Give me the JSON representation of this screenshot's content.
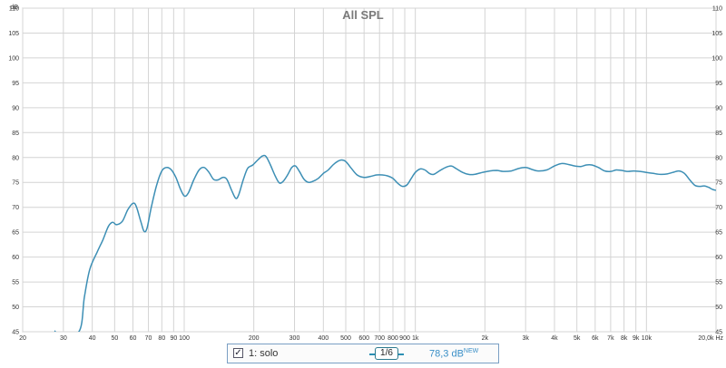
{
  "chart_data": {
    "type": "line",
    "title": "All SPL",
    "ylabel": "dB",
    "xscale": "log",
    "xlim": [
      20,
      20000
    ],
    "ylim": [
      45,
      110
    ],
    "grid": true,
    "y_ticks": [
      45,
      50,
      55,
      60,
      65,
      70,
      75,
      80,
      85,
      90,
      95,
      100,
      105,
      110
    ],
    "x_ticks": [
      {
        "v": 20,
        "label": "20"
      },
      {
        "v": 30,
        "label": "30"
      },
      {
        "v": 40,
        "label": "40"
      },
      {
        "v": 50,
        "label": "50"
      },
      {
        "v": 60,
        "label": "60"
      },
      {
        "v": 70,
        "label": "70"
      },
      {
        "v": 80,
        "label": "80"
      },
      {
        "v": 90,
        "label": "90"
      },
      {
        "v": 100,
        "label": "100"
      },
      {
        "v": 200,
        "label": "200"
      },
      {
        "v": 300,
        "label": "300"
      },
      {
        "v": 400,
        "label": "400"
      },
      {
        "v": 500,
        "label": "500"
      },
      {
        "v": 600,
        "label": "600"
      },
      {
        "v": 700,
        "label": "700"
      },
      {
        "v": 800,
        "label": "800"
      },
      {
        "v": 900,
        "label": "900"
      },
      {
        "v": 1000,
        "label": "1k"
      },
      {
        "v": 2000,
        "label": "2k"
      },
      {
        "v": 3000,
        "label": "3k"
      },
      {
        "v": 4000,
        "label": "4k"
      },
      {
        "v": 5000,
        "label": "5k"
      },
      {
        "v": 6000,
        "label": "6k"
      },
      {
        "v": 7000,
        "label": "7k"
      },
      {
        "v": 8000,
        "label": "8k"
      },
      {
        "v": 9000,
        "label": "9k"
      },
      {
        "v": 10000,
        "label": "10k"
      },
      {
        "v": 20000,
        "label": "20,0k Hz"
      }
    ],
    "series": [
      {
        "name": "1: solo",
        "color": "#3d8fb5",
        "points": [
          [
            27.5,
            45.2
          ],
          [
            28.5,
            44.8
          ],
          [
            35,
            45
          ],
          [
            37,
            52
          ],
          [
            39,
            57.5
          ],
          [
            42,
            61
          ],
          [
            44.5,
            63.5
          ],
          [
            47,
            66.2
          ],
          [
            49,
            67
          ],
          [
            51,
            66.5
          ],
          [
            54,
            67.2
          ],
          [
            57,
            69.5
          ],
          [
            60,
            70.8
          ],
          [
            62,
            70.2
          ],
          [
            65,
            67
          ],
          [
            67,
            65.2
          ],
          [
            69,
            65.8
          ],
          [
            72,
            70
          ],
          [
            76,
            74.5
          ],
          [
            80,
            77.3
          ],
          [
            84,
            78
          ],
          [
            88,
            77.5
          ],
          [
            92,
            76
          ],
          [
            96,
            73.8
          ],
          [
            100,
            72.3
          ],
          [
            104,
            72.8
          ],
          [
            110,
            75.5
          ],
          [
            116,
            77.5
          ],
          [
            122,
            78
          ],
          [
            128,
            77
          ],
          [
            134,
            75.6
          ],
          [
            140,
            75.5
          ],
          [
            147,
            76
          ],
          [
            153,
            75.6
          ],
          [
            160,
            73.5
          ],
          [
            167,
            71.8
          ],
          [
            172,
            72.5
          ],
          [
            180,
            75.5
          ],
          [
            188,
            77.8
          ],
          [
            198,
            78.5
          ],
          [
            208,
            79.5
          ],
          [
            218,
            80.3
          ],
          [
            226,
            80.2
          ],
          [
            236,
            78.5
          ],
          [
            248,
            76.2
          ],
          [
            258,
            74.9
          ],
          [
            268,
            75.2
          ],
          [
            280,
            76.5
          ],
          [
            292,
            78
          ],
          [
            303,
            78.3
          ],
          [
            315,
            77.2
          ],
          [
            330,
            75.6
          ],
          [
            345,
            75
          ],
          [
            360,
            75.2
          ],
          [
            380,
            75.8
          ],
          [
            400,
            76.8
          ],
          [
            420,
            77.5
          ],
          [
            440,
            78.5
          ],
          [
            460,
            79.2
          ],
          [
            480,
            79.5
          ],
          [
            500,
            79.2
          ],
          [
            525,
            78
          ],
          [
            560,
            76.5
          ],
          [
            600,
            76
          ],
          [
            640,
            76.2
          ],
          [
            680,
            76.5
          ],
          [
            720,
            76.5
          ],
          [
            760,
            76.3
          ],
          [
            800,
            75.8
          ],
          [
            840,
            74.8
          ],
          [
            880,
            74.2
          ],
          [
            920,
            74.5
          ],
          [
            960,
            75.8
          ],
          [
            1000,
            77
          ],
          [
            1050,
            77.7
          ],
          [
            1100,
            77.5
          ],
          [
            1150,
            76.8
          ],
          [
            1200,
            76.6
          ],
          [
            1270,
            77.3
          ],
          [
            1350,
            78
          ],
          [
            1430,
            78.3
          ],
          [
            1500,
            77.8
          ],
          [
            1600,
            77
          ],
          [
            1700,
            76.6
          ],
          [
            1800,
            76.6
          ],
          [
            1950,
            77
          ],
          [
            2100,
            77.3
          ],
          [
            2250,
            77.4
          ],
          [
            2400,
            77.2
          ],
          [
            2600,
            77.3
          ],
          [
            2800,
            77.8
          ],
          [
            3000,
            78
          ],
          [
            3200,
            77.6
          ],
          [
            3400,
            77.3
          ],
          [
            3700,
            77.5
          ],
          [
            4000,
            78.3
          ],
          [
            4300,
            78.8
          ],
          [
            4600,
            78.6
          ],
          [
            4900,
            78.3
          ],
          [
            5200,
            78.2
          ],
          [
            5500,
            78.5
          ],
          [
            5800,
            78.5
          ],
          [
            6200,
            78
          ],
          [
            6600,
            77.3
          ],
          [
            7000,
            77.2
          ],
          [
            7400,
            77.5
          ],
          [
            7800,
            77.4
          ],
          [
            8300,
            77.2
          ],
          [
            8800,
            77.3
          ],
          [
            9400,
            77.2
          ],
          [
            10000,
            77
          ],
          [
            10700,
            76.8
          ],
          [
            11500,
            76.6
          ],
          [
            12300,
            76.7
          ],
          [
            13000,
            77
          ],
          [
            13800,
            77.3
          ],
          [
            14600,
            76.8
          ],
          [
            15400,
            75.5
          ],
          [
            16200,
            74.4
          ],
          [
            17000,
            74.2
          ],
          [
            17800,
            74.3
          ],
          [
            18600,
            74
          ],
          [
            19300,
            73.6
          ],
          [
            20000,
            73.4
          ]
        ]
      }
    ]
  },
  "legend": {
    "checked": "✓",
    "name": "1: solo",
    "smoothing": "1/6",
    "value": "78,3 dB",
    "badge": "NEW"
  }
}
